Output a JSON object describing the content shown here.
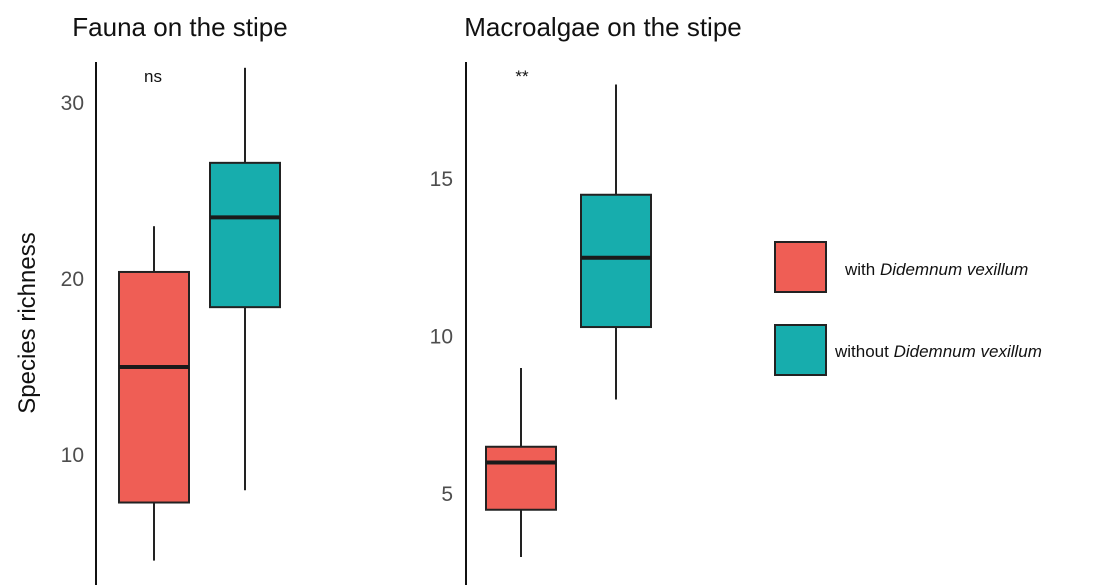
{
  "y_axis_label": "Species richness",
  "legend": {
    "items": [
      {
        "prefix": "with ",
        "italic": "Didemnum vexillum",
        "color": "#ef5e55"
      },
      {
        "prefix": "without ",
        "italic": "Didemnum vexillum",
        "color": "#17adad"
      }
    ]
  },
  "chart_data": [
    {
      "type": "box",
      "title": "Fauna on the stipe",
      "significance": "ns",
      "ylabel": "Species richness",
      "ylim": [
        3,
        32
      ],
      "yticks": [
        10,
        20,
        30
      ],
      "series": [
        {
          "name": "with Didemnum vexillum",
          "color": "#ef5e55",
          "min": 4,
          "q1": 7.3,
          "median": 15,
          "q3": 20.4,
          "max": 23
        },
        {
          "name": "without Didemnum vexillum",
          "color": "#17adad",
          "min": 8,
          "q1": 18.4,
          "median": 23.5,
          "q3": 26.6,
          "max": 32
        }
      ]
    },
    {
      "type": "box",
      "title": "Macroalgae on the stipe",
      "significance": "**",
      "ylim": [
        2,
        19
      ],
      "yticks": [
        5,
        10,
        15
      ],
      "series": [
        {
          "name": "with Didemnum vexillum",
          "color": "#ef5e55",
          "min": 3,
          "q1": 4.5,
          "median": 6,
          "q3": 6.5,
          "max": 9
        },
        {
          "name": "without Didemnum vexillum",
          "color": "#17adad",
          "min": 8,
          "q1": 10.3,
          "median": 12.5,
          "q3": 14.5,
          "max": 18
        }
      ]
    }
  ]
}
